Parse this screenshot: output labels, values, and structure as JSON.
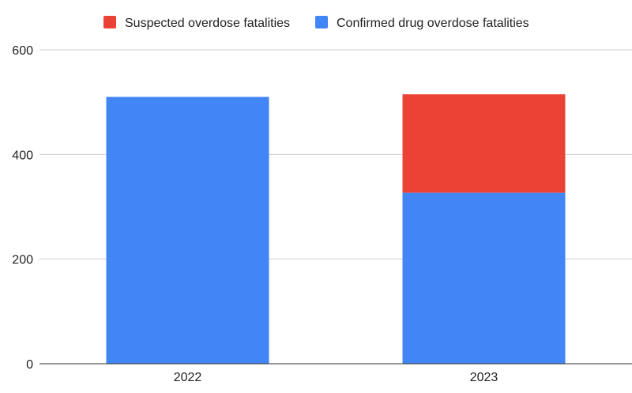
{
  "chart_data": {
    "type": "bar",
    "stacked": true,
    "categories": [
      "2022",
      "2023"
    ],
    "series": [
      {
        "name": "Confirmed drug overdose fatalities",
        "color": "#4285f4",
        "values": [
          510,
          327
        ]
      },
      {
        "name": "Suspected overdose fatalities",
        "color": "#ea4335",
        "values": [
          0,
          188
        ]
      }
    ],
    "legend_order": [
      1,
      0
    ],
    "legend_position": "top",
    "ylim": [
      0,
      600
    ],
    "yticks": [
      "0",
      "200",
      "400",
      "600"
    ],
    "grid": true
  }
}
